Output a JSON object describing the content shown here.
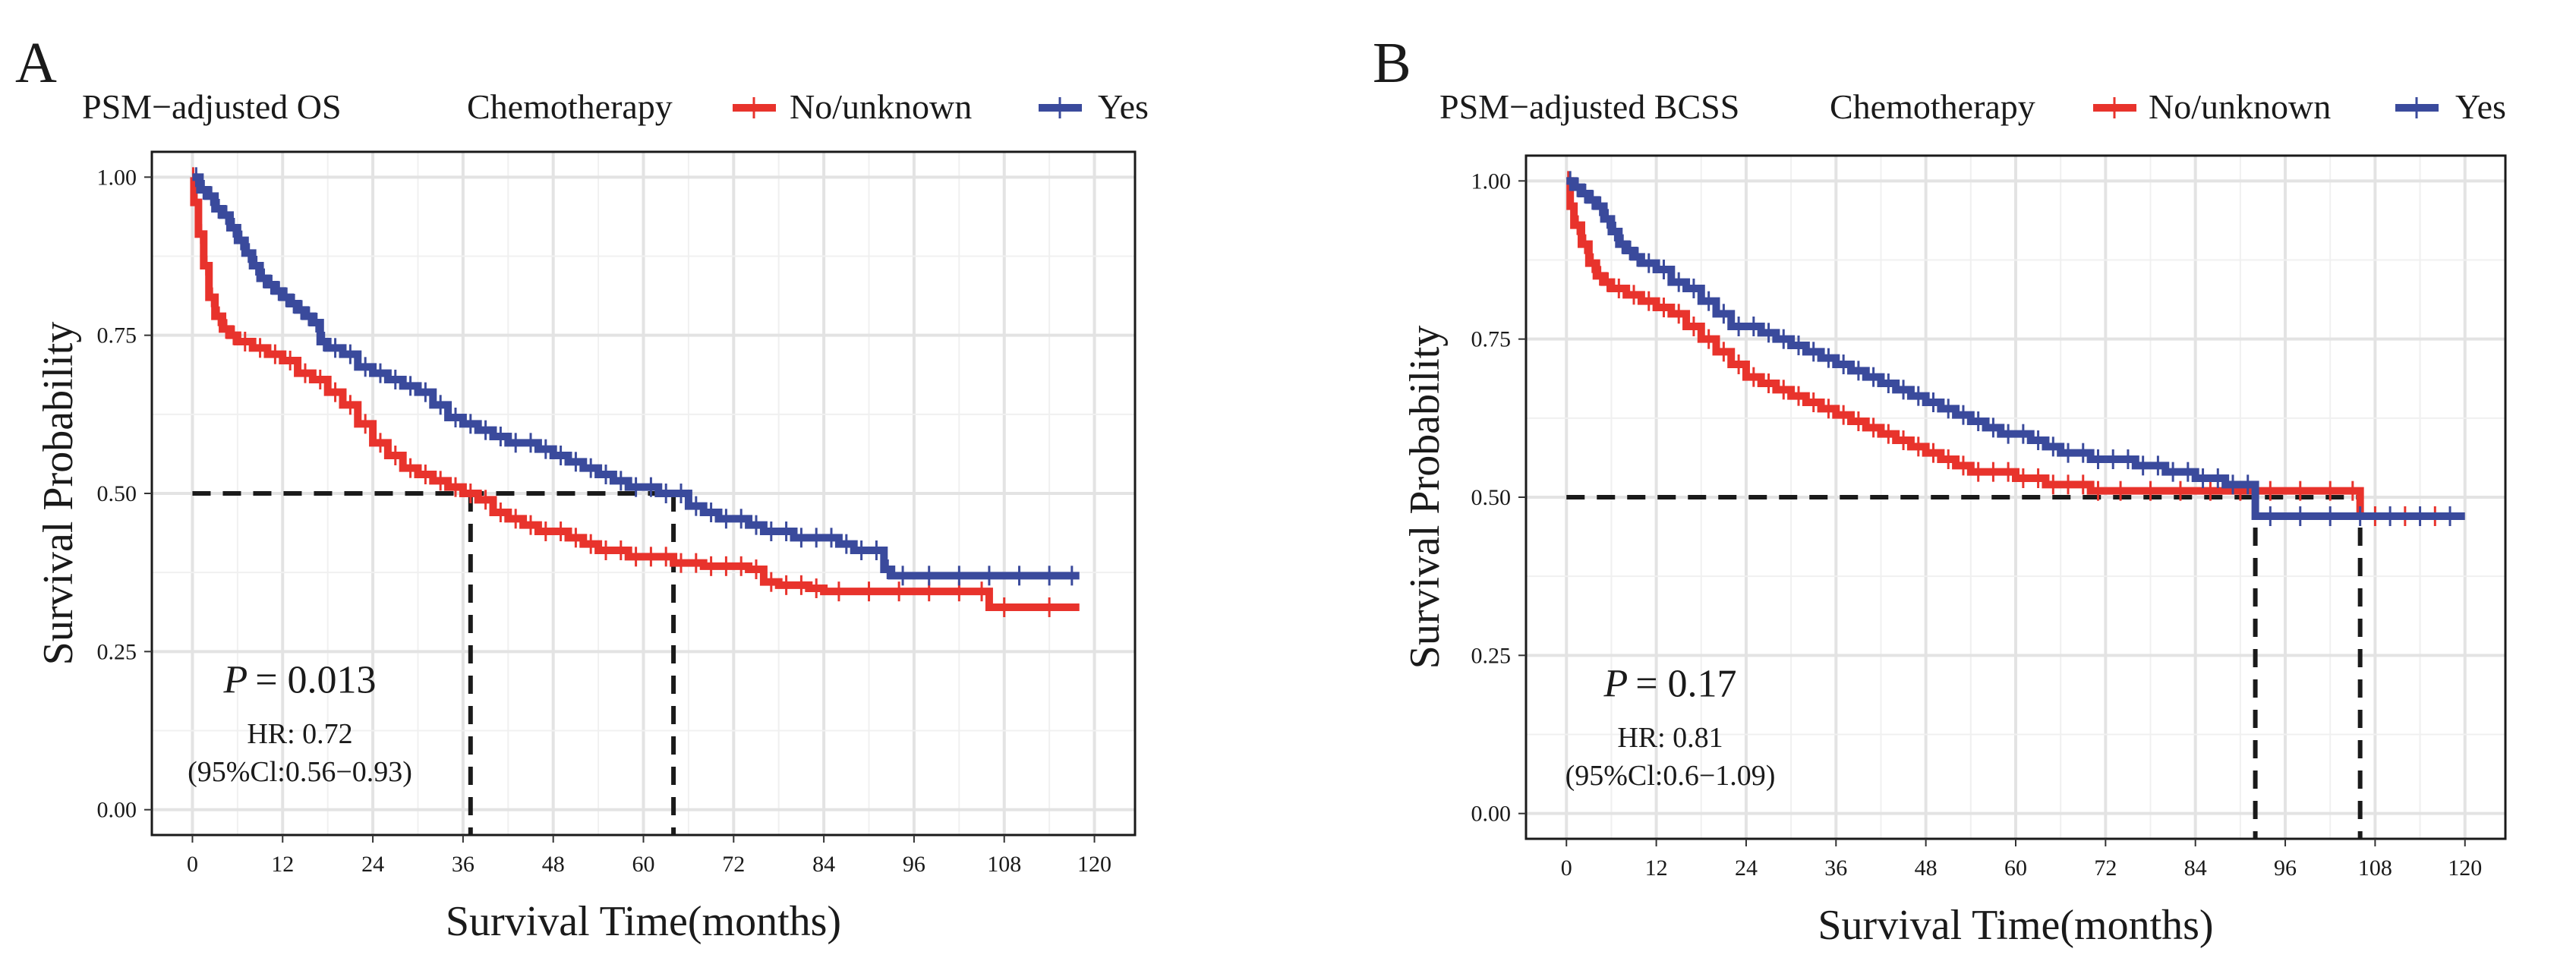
{
  "chart_data": [
    {
      "type": "line",
      "panel_label": "A",
      "title": "PSM−adjusted OS",
      "legend_title": "Chemotherapy",
      "xlabel": "Survival Time(months)",
      "ylabel": "Survival Probability",
      "xlim": [
        0,
        120
      ],
      "ylim": [
        0,
        1
      ],
      "x_ticks": [
        "0",
        "12",
        "24",
        "36",
        "48",
        "60",
        "72",
        "84",
        "96",
        "108",
        "120"
      ],
      "y_ticks": [
        "0.00",
        "0.25",
        "0.50",
        "0.75",
        "1.00"
      ],
      "grid": true,
      "legend_position": "top",
      "stats": {
        "p_prefix": "P",
        "p_value": "= 0.013",
        "hr": "HR: 0.72",
        "ci": "(95%Cl:0.56−0.93)"
      },
      "median_lines": {
        "y": 0.5,
        "x": [
          37,
          64
        ]
      },
      "series": [
        {
          "name": "No/unknown",
          "color": "#e8332c",
          "x": [
            0,
            0.2,
            0.8,
            1.5,
            2.2,
            3,
            4,
            5,
            6,
            8,
            10,
            12,
            14,
            16,
            18,
            20,
            22,
            24,
            26,
            28,
            30,
            32,
            34,
            36,
            38,
            40,
            42,
            44,
            46,
            48,
            50,
            52,
            54,
            56,
            58,
            60,
            62,
            64,
            66,
            68,
            70,
            72,
            74,
            76,
            78,
            80,
            82,
            84,
            88,
            92,
            96,
            100,
            104,
            106,
            110,
            118
          ],
          "values": [
            1.0,
            0.96,
            0.91,
            0.86,
            0.81,
            0.78,
            0.76,
            0.75,
            0.74,
            0.73,
            0.72,
            0.71,
            0.69,
            0.68,
            0.66,
            0.64,
            0.61,
            0.58,
            0.56,
            0.54,
            0.53,
            0.52,
            0.51,
            0.5,
            0.49,
            0.47,
            0.46,
            0.45,
            0.44,
            0.44,
            0.43,
            0.42,
            0.41,
            0.41,
            0.4,
            0.4,
            0.4,
            0.39,
            0.39,
            0.385,
            0.385,
            0.385,
            0.38,
            0.36,
            0.355,
            0.355,
            0.35,
            0.345,
            0.345,
            0.345,
            0.345,
            0.345,
            0.345,
            0.32,
            0.32,
            0.32
          ]
        },
        {
          "name": "Yes",
          "color": "#3a4a9c",
          "x": [
            0,
            1,
            2,
            3,
            4,
            5,
            6,
            7,
            8,
            9,
            10,
            11,
            12,
            13,
            14,
            15,
            16,
            17,
            18,
            20,
            22,
            24,
            26,
            28,
            30,
            32,
            34,
            36,
            38,
            40,
            42,
            44,
            46,
            48,
            50,
            52,
            54,
            56,
            58,
            60,
            62,
            64,
            66,
            68,
            70,
            72,
            74,
            76,
            78,
            80,
            82,
            84,
            86,
            88,
            90,
            92,
            93,
            96,
            100,
            104,
            108,
            112,
            116,
            118
          ],
          "values": [
            1.0,
            0.98,
            0.97,
            0.95,
            0.94,
            0.92,
            0.9,
            0.88,
            0.86,
            0.84,
            0.83,
            0.82,
            0.81,
            0.8,
            0.79,
            0.78,
            0.77,
            0.74,
            0.73,
            0.72,
            0.7,
            0.69,
            0.68,
            0.67,
            0.66,
            0.64,
            0.62,
            0.61,
            0.6,
            0.59,
            0.58,
            0.58,
            0.57,
            0.56,
            0.55,
            0.54,
            0.53,
            0.52,
            0.51,
            0.51,
            0.5,
            0.5,
            0.48,
            0.47,
            0.46,
            0.46,
            0.45,
            0.44,
            0.44,
            0.43,
            0.43,
            0.43,
            0.42,
            0.41,
            0.41,
            0.38,
            0.37,
            0.37,
            0.37,
            0.37,
            0.37,
            0.37,
            0.37,
            0.37
          ]
        }
      ]
    },
    {
      "type": "line",
      "panel_label": "B",
      "title": "PSM−adjusted BCSS",
      "legend_title": "Chemotherapy",
      "xlabel": "Survival Time(months)",
      "ylabel": "Survival Probability",
      "xlim": [
        0,
        120
      ],
      "ylim": [
        0,
        1
      ],
      "x_ticks": [
        "0",
        "12",
        "24",
        "36",
        "48",
        "60",
        "72",
        "84",
        "96",
        "108",
        "120"
      ],
      "y_ticks": [
        "0.00",
        "0.25",
        "0.50",
        "0.75",
        "1.00"
      ],
      "grid": true,
      "legend_position": "top",
      "stats": {
        "p_prefix": "P",
        "p_value": "= 0.17",
        "hr": "HR: 0.81",
        "ci": "(95%Cl:0.6−1.09)"
      },
      "median_lines": {
        "y": 0.5,
        "x": [
          92,
          106
        ]
      },
      "series": [
        {
          "name": "No/unknown",
          "color": "#e8332c",
          "x": [
            0,
            0.5,
            1,
            2,
            3,
            4,
            5,
            6,
            8,
            10,
            12,
            14,
            16,
            18,
            20,
            22,
            24,
            26,
            28,
            30,
            32,
            34,
            36,
            38,
            40,
            42,
            44,
            46,
            48,
            50,
            52,
            54,
            56,
            58,
            60,
            62,
            64,
            66,
            68,
            70,
            72,
            76,
            80,
            84,
            88,
            92,
            96,
            100,
            104,
            106,
            110,
            114,
            118
          ],
          "values": [
            1.0,
            0.96,
            0.93,
            0.9,
            0.87,
            0.85,
            0.84,
            0.83,
            0.82,
            0.81,
            0.8,
            0.79,
            0.77,
            0.75,
            0.73,
            0.71,
            0.69,
            0.68,
            0.67,
            0.66,
            0.65,
            0.64,
            0.63,
            0.62,
            0.61,
            0.6,
            0.59,
            0.58,
            0.57,
            0.56,
            0.55,
            0.54,
            0.54,
            0.54,
            0.53,
            0.53,
            0.52,
            0.52,
            0.52,
            0.51,
            0.51,
            0.51,
            0.51,
            0.51,
            0.51,
            0.51,
            0.51,
            0.51,
            0.51,
            0.47,
            0.47,
            0.47,
            0.47
          ]
        },
        {
          "name": "Yes",
          "color": "#3a4a9c",
          "x": [
            0,
            1,
            2,
            3,
            4,
            5,
            6,
            7,
            8,
            9,
            10,
            12,
            14,
            16,
            18,
            20,
            22,
            24,
            26,
            28,
            30,
            32,
            34,
            36,
            38,
            40,
            42,
            44,
            46,
            48,
            50,
            52,
            54,
            56,
            58,
            60,
            62,
            64,
            66,
            68,
            70,
            72,
            74,
            76,
            78,
            80,
            82,
            84,
            86,
            88,
            90,
            92,
            96,
            100,
            104,
            108,
            112,
            116,
            120
          ],
          "values": [
            1.0,
            0.99,
            0.98,
            0.97,
            0.96,
            0.94,
            0.92,
            0.9,
            0.89,
            0.88,
            0.87,
            0.86,
            0.84,
            0.83,
            0.81,
            0.79,
            0.77,
            0.77,
            0.76,
            0.75,
            0.74,
            0.73,
            0.72,
            0.71,
            0.7,
            0.69,
            0.68,
            0.67,
            0.66,
            0.65,
            0.64,
            0.63,
            0.62,
            0.61,
            0.6,
            0.6,
            0.59,
            0.58,
            0.57,
            0.57,
            0.56,
            0.56,
            0.56,
            0.55,
            0.55,
            0.54,
            0.54,
            0.53,
            0.53,
            0.52,
            0.52,
            0.47,
            0.47,
            0.47,
            0.47,
            0.47,
            0.47,
            0.47,
            0.47
          ]
        }
      ]
    }
  ]
}
